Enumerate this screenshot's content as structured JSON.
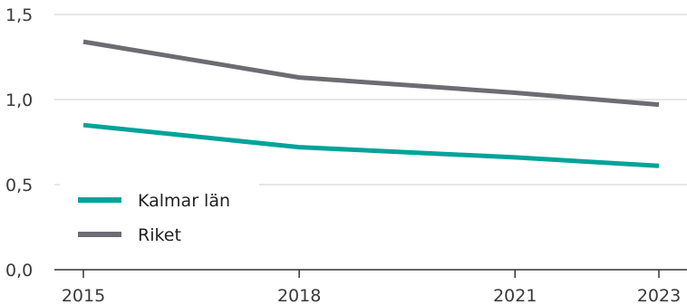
{
  "chart_data": {
    "type": "line",
    "x": [
      2015,
      2018,
      2021,
      2023
    ],
    "xticks": [
      "2015",
      "2018",
      "2021",
      "2023"
    ],
    "yticks": [
      "0,0",
      "0,5",
      "1,0",
      "1,5"
    ],
    "ylim": [
      0,
      1.5
    ],
    "xlim": [
      2015,
      2023
    ],
    "grid": "horizontal",
    "legend_position": "bottom-left",
    "series": [
      {
        "name": "Kalmar län",
        "color": "#00a39a",
        "values": [
          0.85,
          0.72,
          0.66,
          0.61
        ]
      },
      {
        "name": "Riket",
        "color": "#6d6c72",
        "values": [
          1.34,
          1.13,
          1.04,
          0.97
        ]
      }
    ]
  }
}
